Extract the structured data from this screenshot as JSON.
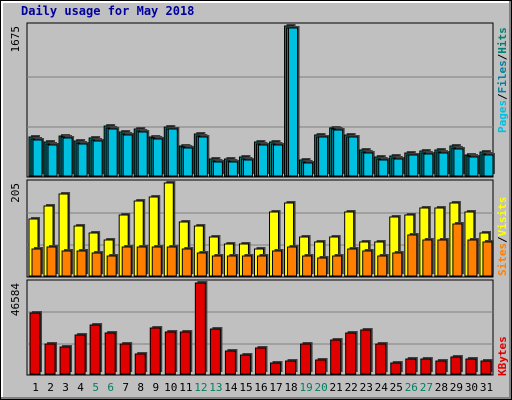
{
  "title": "Daily usage for May 2018",
  "colors": {
    "pages": "#00c0e0",
    "files": "#0080a0",
    "hits": "#008070",
    "sites": "#ff8000",
    "visits": "#ffff00",
    "kbytes": "#e00000",
    "weekend_label": "#008060",
    "weekday_label": "#000000"
  },
  "chart_data": [
    {
      "type": "bar",
      "title": "Daily usage for May 2018",
      "max_label": "1675",
      "legend": [
        "Pages",
        "Files",
        "Hits"
      ],
      "ylim": [
        0,
        1675
      ],
      "categories": [
        "1",
        "2",
        "3",
        "4",
        "5",
        "6",
        "7",
        "8",
        "9",
        "10",
        "11",
        "12",
        "13",
        "14",
        "15",
        "16",
        "17",
        "18",
        "19",
        "20",
        "21",
        "22",
        "23",
        "24",
        "25",
        "26",
        "27",
        "28",
        "29",
        "30",
        "31"
      ],
      "weekend_days": [
        "5",
        "6",
        "12",
        "13",
        "19",
        "20",
        "26",
        "27"
      ],
      "series": [
        {
          "name": "Hits",
          "values": [
            430,
            380,
            450,
            390,
            420,
            560,
            490,
            520,
            440,
            550,
            340,
            470,
            190,
            190,
            210,
            380,
            380,
            1675,
            180,
            460,
            540,
            460,
            290,
            210,
            220,
            260,
            280,
            290,
            330,
            240,
            270
          ]
        },
        {
          "name": "Files",
          "values": [
            410,
            360,
            430,
            370,
            400,
            540,
            470,
            500,
            420,
            530,
            320,
            450,
            170,
            170,
            190,
            360,
            360,
            1655,
            160,
            440,
            520,
            440,
            270,
            190,
            200,
            240,
            260,
            270,
            310,
            220,
            250
          ]
        },
        {
          "name": "Pages",
          "values": [
            400,
            350,
            420,
            360,
            390,
            530,
            460,
            490,
            410,
            520,
            310,
            440,
            160,
            160,
            180,
            350,
            350,
            1650,
            150,
            430,
            510,
            430,
            260,
            180,
            190,
            230,
            250,
            260,
            300,
            210,
            240
          ]
        }
      ]
    },
    {
      "type": "bar",
      "max_label": "205",
      "legend": [
        "Sites",
        "Visits"
      ],
      "ylim": [
        0,
        205
      ],
      "categories": [
        "1",
        "2",
        "3",
        "4",
        "5",
        "6",
        "7",
        "8",
        "9",
        "10",
        "11",
        "12",
        "13",
        "14",
        "15",
        "16",
        "17",
        "18",
        "19",
        "20",
        "21",
        "22",
        "23",
        "24",
        "25",
        "26",
        "27",
        "28",
        "29",
        "30",
        "31"
      ],
      "series": [
        {
          "name": "Visits",
          "values": [
            125,
            155,
            180,
            110,
            95,
            80,
            135,
            165,
            175,
            205,
            120,
            110,
            85,
            70,
            70,
            60,
            140,
            160,
            85,
            75,
            85,
            140,
            75,
            75,
            130,
            135,
            150,
            150,
            160,
            140,
            95
          ]
        },
        {
          "name": "Sites",
          "values": [
            60,
            65,
            55,
            55,
            50,
            45,
            65,
            65,
            65,
            65,
            60,
            50,
            45,
            45,
            45,
            45,
            55,
            65,
            45,
            40,
            45,
            60,
            55,
            45,
            50,
            90,
            80,
            80,
            115,
            80,
            75
          ]
        }
      ]
    },
    {
      "type": "bar",
      "max_label": "46584",
      "legend": [
        "KBytes"
      ],
      "ylim": [
        0,
        46584
      ],
      "categories": [
        "1",
        "2",
        "3",
        "4",
        "5",
        "6",
        "7",
        "8",
        "9",
        "10",
        "11",
        "12",
        "13",
        "14",
        "15",
        "16",
        "17",
        "18",
        "19",
        "20",
        "21",
        "22",
        "23",
        "24",
        "25",
        "26",
        "27",
        "28",
        "29",
        "30",
        "31"
      ],
      "series": [
        {
          "name": "KBytes",
          "values": [
            31000,
            15500,
            14000,
            20000,
            25000,
            21000,
            15500,
            10000,
            23500,
            21500,
            21500,
            46584,
            23000,
            12000,
            9500,
            13500,
            5500,
            6500,
            15500,
            7000,
            17500,
            21000,
            22500,
            15500,
            5500,
            7500,
            7500,
            6500,
            8500,
            7500,
            6500
          ]
        }
      ]
    }
  ]
}
